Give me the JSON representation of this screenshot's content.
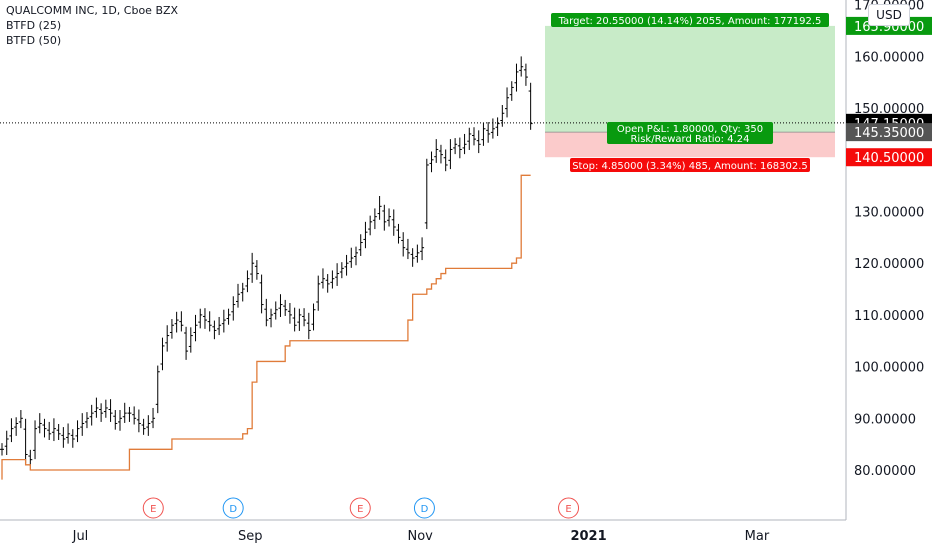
{
  "header": {
    "symbol_title": "QUALCOMM INC, 1D, Cboe BZX",
    "indicators": [
      "BTFD (25)",
      "BTFD (50)"
    ],
    "currency": "USD"
  },
  "colors": {
    "candle": "#000000",
    "indicator_line": "#e07b39",
    "target_zone": "#c8ebc8",
    "stop_zone": "#fbcbcb",
    "target_label_bg": "#089a0f",
    "stop_label_bg": "#f50a0a",
    "pnl_label_bg": "#089a0f",
    "price_label_bg": "#000000",
    "entry_label_bg": "#555555",
    "earnings_marker": "#f05350",
    "dividend_marker": "#2196f3"
  },
  "position": {
    "target_text": "Target: 20.55000 (14.14%) 2055, Amount: 177192.5",
    "pnl_text_1": "Open P&L: 1.80000, Qty: 350",
    "pnl_text_2": "Risk/Reward Ratio: 4.24",
    "stop_text": "Stop: 4.85000 (3.34%) 485, Amount: 168302.5"
  },
  "price_labels": {
    "target": "165.90000",
    "current": "147.15000",
    "entry": "145.35000",
    "stop": "140.50000"
  },
  "events": [
    {
      "type": "E",
      "x": 11.7
    },
    {
      "type": "D",
      "x": 17.8
    },
    {
      "type": "E",
      "x": 27.5
    },
    {
      "type": "D",
      "x": 32.4
    },
    {
      "type": "E",
      "x": 43.4
    }
  ],
  "chart_data": {
    "type": "ohlc",
    "title": "QUALCOMM INC, 1D, Cboe BZX",
    "y_axis": {
      "min": 70,
      "max": 170,
      "ticks": [
        "170.00000",
        "160.00000",
        "150.00000",
        "140.00000",
        "130.00000",
        "120.00000",
        "110.00000",
        "100.00000",
        "90.00000",
        "80.00000"
      ]
    },
    "x_axis": {
      "labels": [
        {
          "text": "Jul",
          "x": 5.4
        },
        {
          "text": "Sep",
          "x": 16.8
        },
        {
          "text": "Nov",
          "x": 28.2
        },
        {
          "text": "2021",
          "x": 39.5
        },
        {
          "text": "Mar",
          "x": 50.8
        }
      ],
      "bold_label": "2021"
    },
    "position": {
      "entry": 145.35,
      "target": 165.9,
      "stop": 140.5,
      "current": 147.15,
      "start_x": 36.5,
      "end_x": 56.5
    },
    "bars_x_start": 0,
    "bars_x_step": 1,
    "closes": [
      84,
      86,
      88,
      89,
      90,
      83,
      82,
      88,
      89,
      88,
      87,
      88,
      87,
      86,
      87,
      86,
      88,
      89,
      90,
      91,
      92,
      91,
      92,
      91,
      89,
      90,
      91,
      91,
      90,
      89,
      88,
      89,
      90,
      99,
      104,
      106,
      108,
      109,
      108,
      103,
      106,
      108,
      110,
      109,
      108,
      107,
      108,
      109,
      110,
      112,
      114,
      115,
      117,
      120,
      118,
      112,
      109,
      110,
      111,
      112,
      111,
      110,
      108,
      110,
      109,
      107,
      111,
      116,
      117,
      116,
      117,
      118,
      119,
      120,
      121,
      122,
      124,
      126,
      128,
      129,
      131,
      128,
      129,
      127,
      125,
      123,
      122,
      121,
      122,
      123,
      139,
      140,
      142,
      141,
      139,
      142,
      143,
      142,
      143,
      145,
      144,
      143,
      146,
      145,
      146,
      147,
      149,
      152,
      154,
      157,
      158,
      156,
      147
    ]
  }
}
